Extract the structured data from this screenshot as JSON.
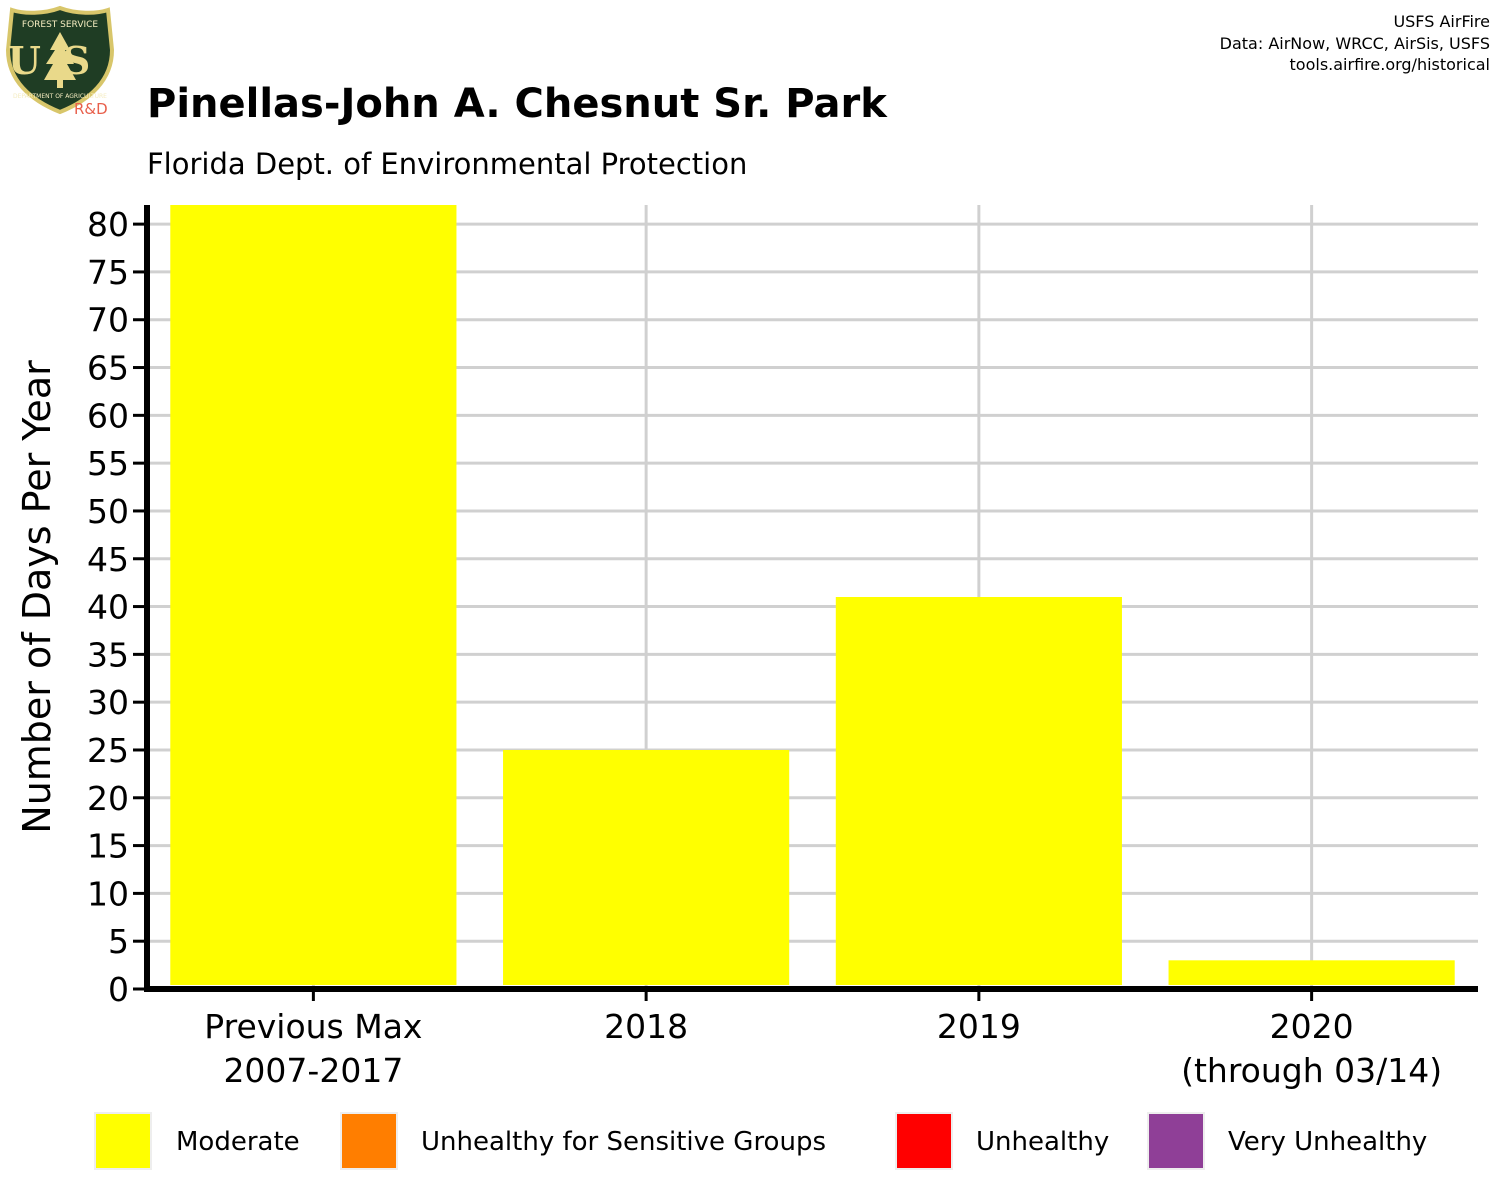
{
  "header": {
    "title": "Pinellas-John A. Chesnut Sr. Park",
    "subtitle": "Florida Dept. of Environmental Protection",
    "credits": [
      "USFS AirFire",
      "Data: AirNow, WRCC, AirSis, USFS",
      "tools.airfire.org/historical"
    ]
  },
  "logo": {
    "top_text": "FOREST SERVICE",
    "letters": "US",
    "bottom_text": "DEPARTMENT OF AGRICULTURE",
    "rd_text": "R&D",
    "colors": {
      "shield": "#1f3d24",
      "border": "#d8c66a",
      "rd": "#e8604c"
    }
  },
  "chart_data": {
    "type": "bar",
    "title": "Pinellas-John A. Chesnut Sr. Park",
    "subtitle": "Florida Dept. of Environmental Protection",
    "ylabel": "Number of Days Per Year",
    "xlabel": "",
    "ylim": [
      0,
      82
    ],
    "yticks": [
      0,
      5,
      10,
      15,
      20,
      25,
      30,
      35,
      40,
      45,
      50,
      55,
      60,
      65,
      70,
      75,
      80
    ],
    "grid": true,
    "categories": [
      [
        "Previous Max",
        "2007-2017"
      ],
      [
        "2018"
      ],
      [
        "2019"
      ],
      [
        "2020",
        "(through 03/14)"
      ]
    ],
    "series": [
      {
        "name": "Moderate",
        "color": "#ffff00",
        "values": [
          82,
          25,
          41,
          3
        ]
      }
    ],
    "legend": {
      "placement": "bottom",
      "items": [
        {
          "label": "Moderate",
          "color": "#ffff00"
        },
        {
          "label": "Unhealthy for Sensitive Groups",
          "color": "#ff7e00"
        },
        {
          "label": "Unhealthy",
          "color": "#ff0000"
        },
        {
          "label": "Very Unhealthy",
          "color": "#8f3f97"
        }
      ]
    }
  }
}
